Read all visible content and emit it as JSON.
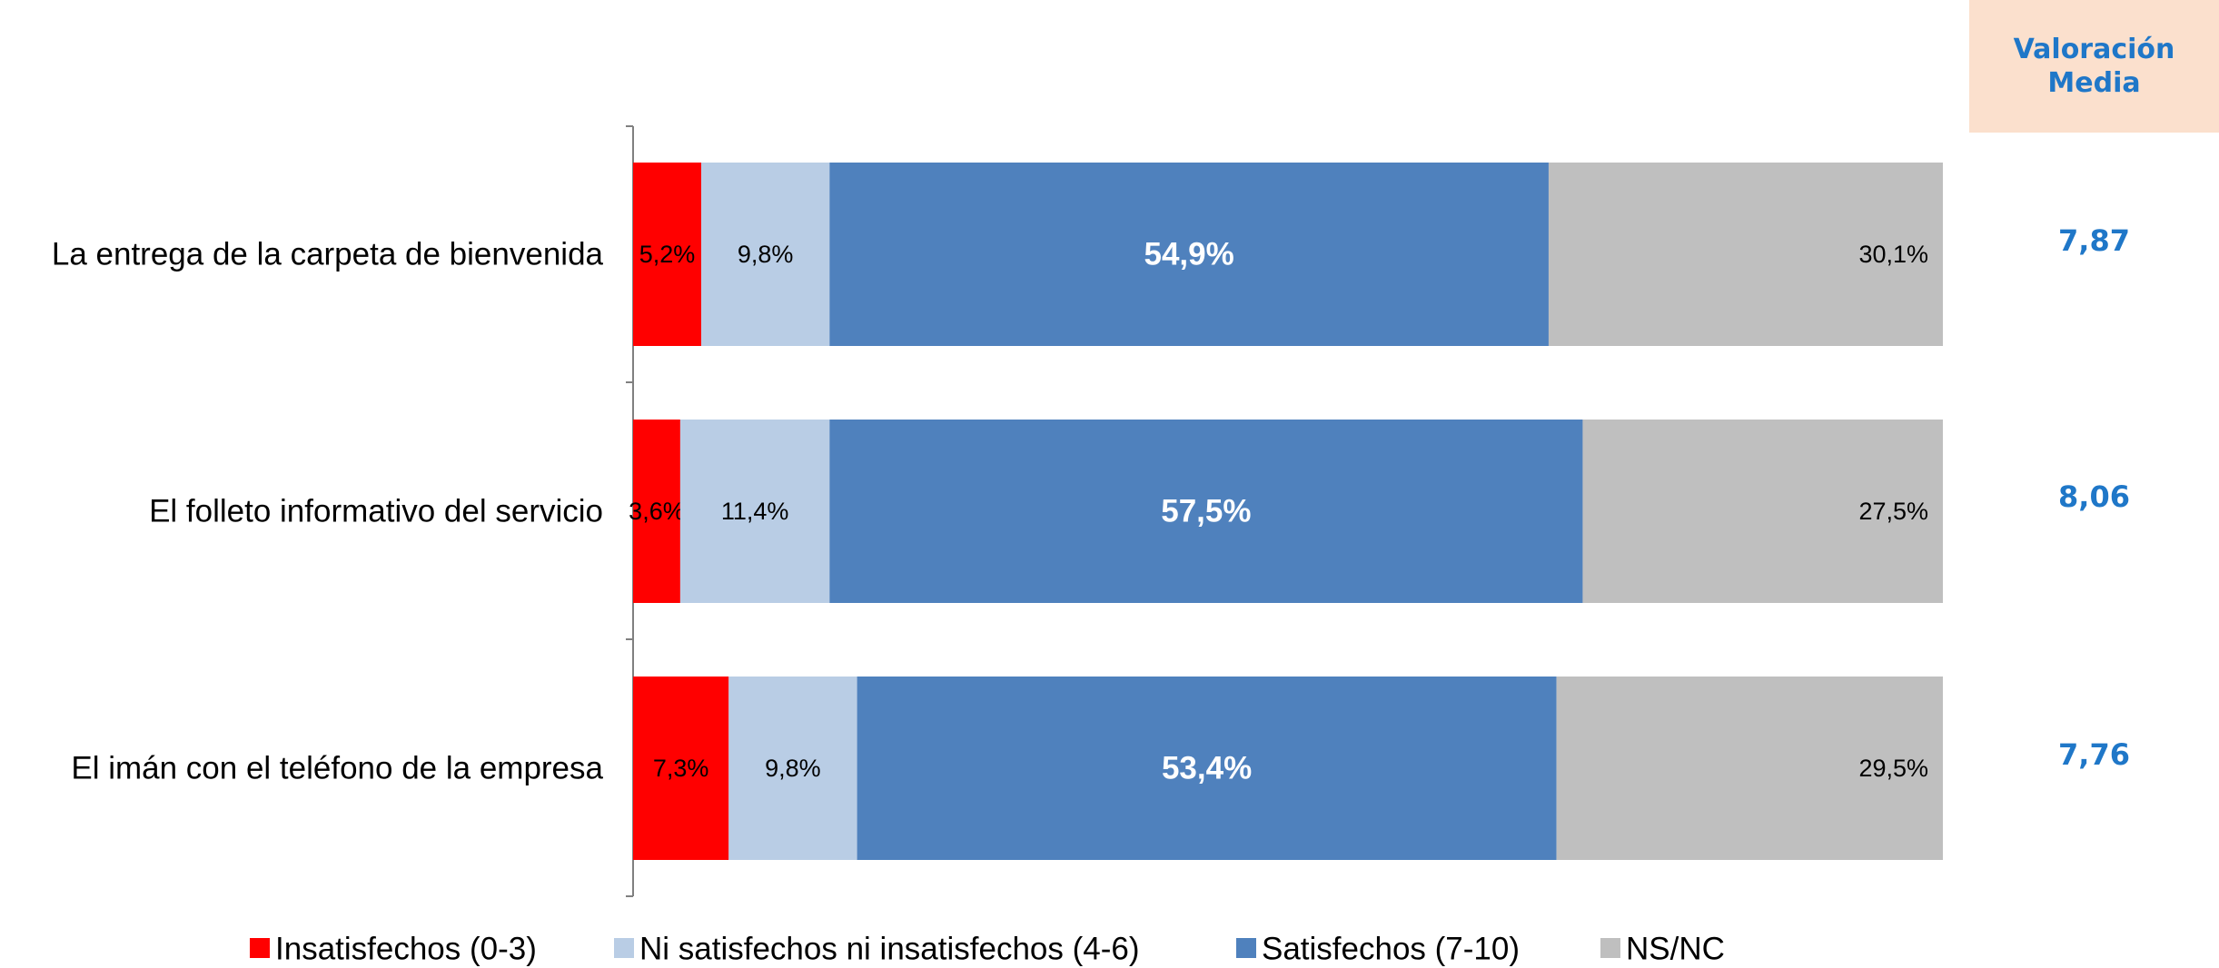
{
  "average_panel": {
    "title": "Valoración\nMedia",
    "values": [
      "7,87",
      "8,06",
      "7,76"
    ]
  },
  "chart_data": {
    "type": "bar",
    "orientation": "horizontal",
    "stacked": "percent",
    "categories": [
      "La entrega de la carpeta de bienvenida",
      "El folleto informativo del servicio",
      "El imán con el teléfono de la empresa"
    ],
    "series": [
      {
        "name": "Insatisfechos (0-3)",
        "color": "#ff0000",
        "values": [
          5.2,
          3.6,
          7.3
        ],
        "labels": [
          "5,2%",
          "3,6%",
          "7,3%"
        ]
      },
      {
        "name": "Ni satisfechos ni insatisfechos (4-6)",
        "color": "#b9cde5",
        "values": [
          9.8,
          11.4,
          9.8
        ],
        "labels": [
          "9,8%",
          "11,4%",
          "9,8%"
        ]
      },
      {
        "name": "Satisfechos (7-10)",
        "color": "#4f81bd",
        "values": [
          54.9,
          57.5,
          53.4
        ],
        "labels": [
          "54,9%",
          "57,5%",
          "53,4%"
        ]
      },
      {
        "name": "NS/NC",
        "color": "#bfbfbf",
        "values": [
          30.1,
          27.5,
          29.5
        ],
        "labels": [
          "30,1%",
          "27,5%",
          "29,5%"
        ]
      }
    ],
    "xlim": [
      0,
      100
    ],
    "grid": false,
    "legend": "bottom"
  }
}
